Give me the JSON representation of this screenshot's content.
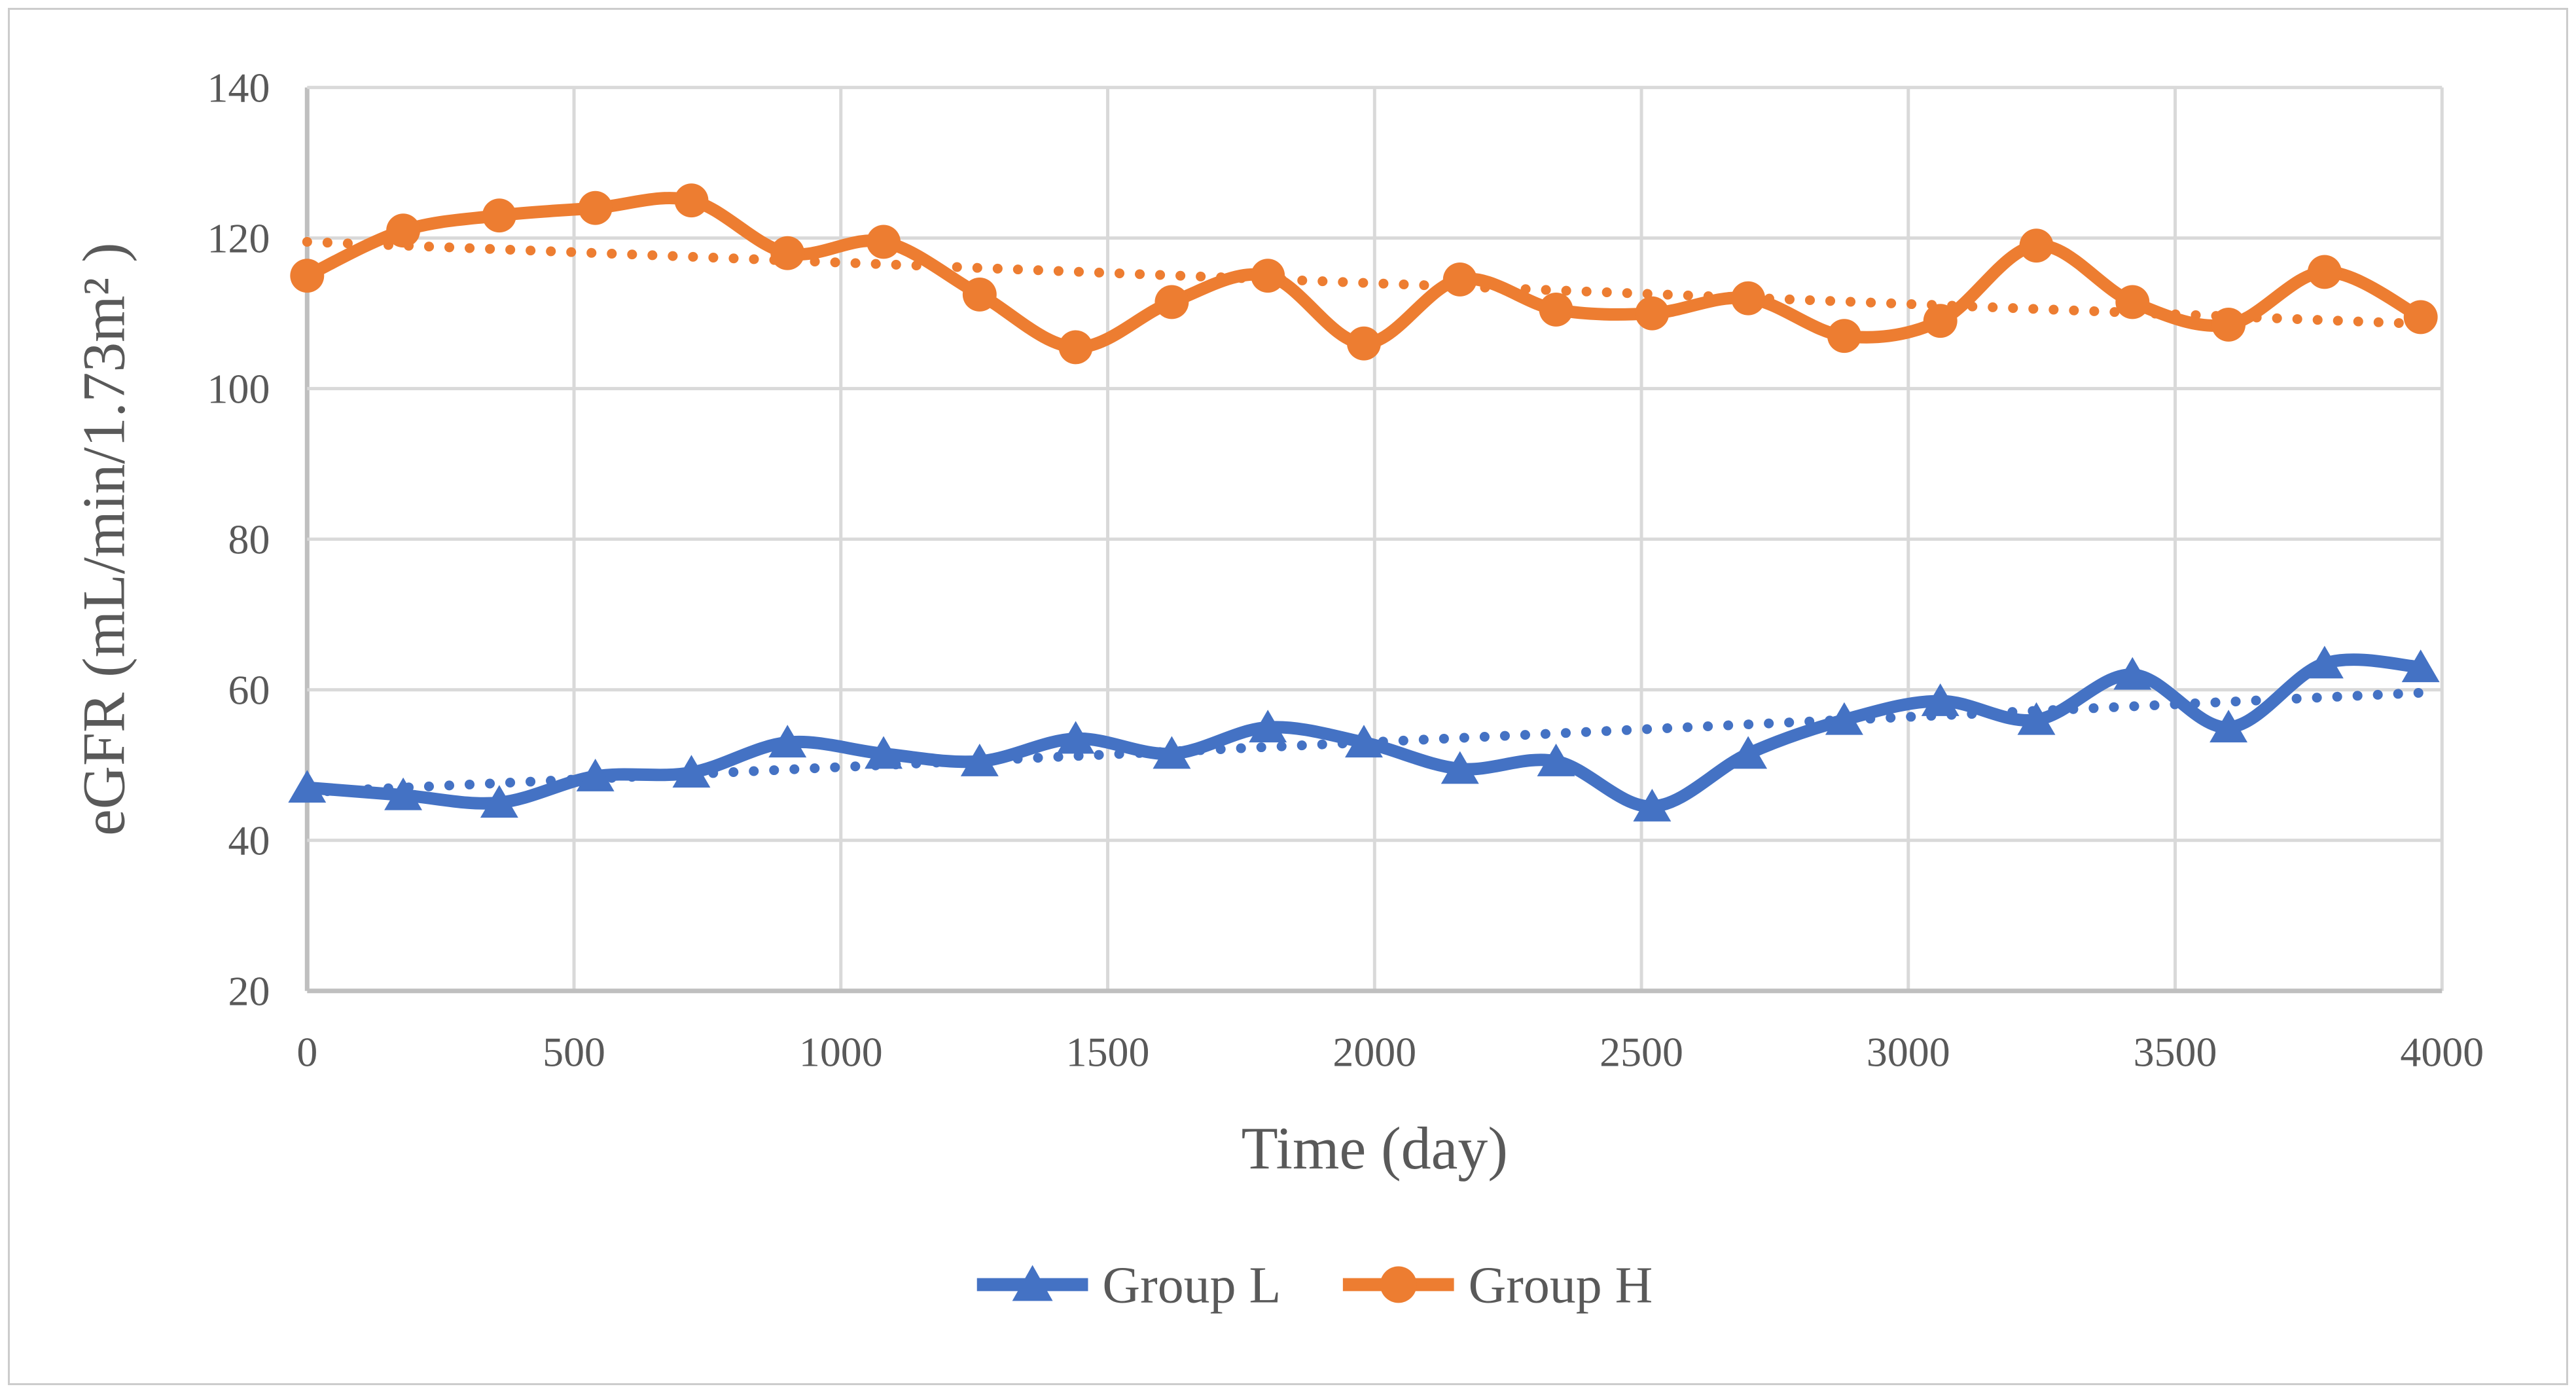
{
  "chart_data": {
    "type": "line",
    "title": "",
    "xlabel": "Time (day)",
    "ylabel": "eGFR (mL/min/1.73m² )",
    "xlim": [
      0,
      4000
    ],
    "ylim": [
      20,
      140
    ],
    "xticks": [
      0,
      500,
      1000,
      1500,
      2000,
      2500,
      3000,
      3500,
      4000
    ],
    "yticks": [
      140,
      120,
      100,
      80,
      60,
      40,
      20
    ],
    "grid": true,
    "legend_position": "bottom-center",
    "x": [
      0,
      180,
      360,
      540,
      720,
      900,
      1080,
      1260,
      1440,
      1620,
      1800,
      1980,
      2160,
      2340,
      2520,
      2700,
      2880,
      3060,
      3240,
      3420,
      3600,
      3780,
      3960
    ],
    "series": [
      {
        "name": "Group L",
        "marker": "triangle",
        "color": "#4472C4",
        "values": [
          47,
          46,
          45,
          48.5,
          49,
          53,
          51.5,
          50.5,
          53.5,
          51.5,
          55,
          53,
          49.5,
          50.5,
          44.5,
          51.5,
          56,
          58.5,
          56,
          62,
          55,
          63.5,
          63
        ],
        "trendline": {
          "style": "dotted",
          "start_value": 46.4,
          "end_value": 59.6
        }
      },
      {
        "name": "Group H",
        "marker": "circle",
        "color": "#ED7D31",
        "values": [
          115,
          121,
          123,
          124,
          125,
          118,
          119.5,
          112.5,
          105.5,
          111.5,
          115,
          106,
          114.5,
          110.5,
          110,
          112,
          107,
          109,
          119,
          111.5,
          108.5,
          115.5,
          109.5
        ],
        "trendline": {
          "style": "dotted",
          "start_value": 119.5,
          "end_value": 108.6
        }
      }
    ],
    "colors": {
      "series_l": "#4472C4",
      "series_h": "#ED7D31",
      "gridline": "#D9D9D9",
      "axis_line": "#BFBFBF",
      "text": "#595959",
      "background": "#FFFFFF",
      "frame_border": "#CCCCCC"
    },
    "legend": [
      {
        "label": "Group L"
      },
      {
        "label": "Group H"
      }
    ]
  }
}
